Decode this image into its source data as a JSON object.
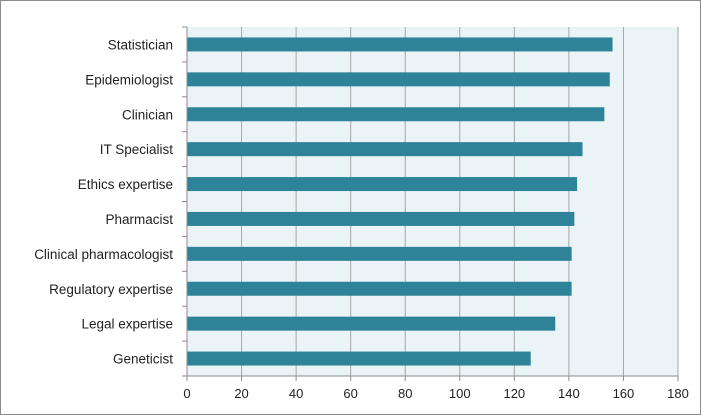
{
  "chart_data": {
    "type": "bar",
    "orientation": "horizontal",
    "categories": [
      "Statistician",
      "Epidemiologist",
      "Clinician",
      "IT Specialist",
      "Ethics expertise",
      "Pharmacist",
      "Clinical pharmacologist",
      "Regulatory expertise",
      "Legal expertise",
      "Geneticist"
    ],
    "values": [
      156,
      155,
      153,
      145,
      143,
      142,
      141,
      141,
      135,
      126
    ],
    "xlim": [
      0,
      180
    ],
    "xticks": [
      0,
      20,
      40,
      60,
      80,
      100,
      120,
      140,
      160,
      180
    ],
    "title": "",
    "xlabel": "",
    "ylabel": "",
    "grid": "vertical",
    "legend": "none",
    "colors": {
      "bar": "#2f8399",
      "plot_background": "#eaf4f7",
      "gridline": "#a6a6a6",
      "axis": "#8c8c8c"
    }
  }
}
